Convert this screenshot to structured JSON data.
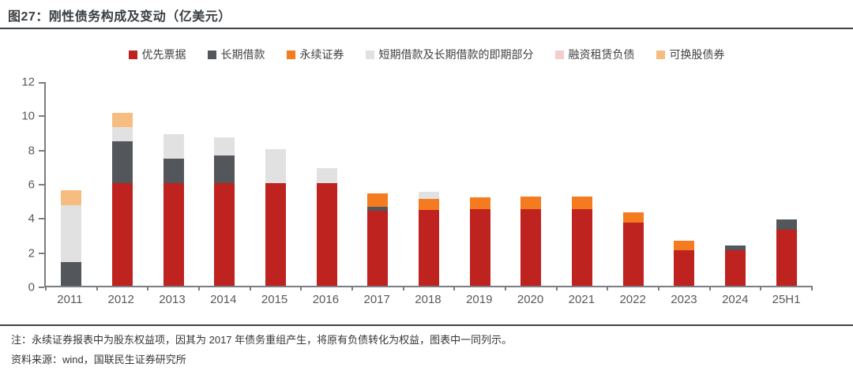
{
  "header": {
    "title": "图27：刚性债务构成及变动（亿美元）"
  },
  "chart_data": {
    "type": "bar",
    "stacked": true,
    "title": "刚性债务构成及变动（亿美元）",
    "categories": [
      "2011",
      "2012",
      "2013",
      "2014",
      "2015",
      "2016",
      "2017",
      "2018",
      "2019",
      "2020",
      "2021",
      "2022",
      "2023",
      "2024",
      "25H1"
    ],
    "series": [
      {
        "name": "优先票据",
        "color": "#be2320",
        "values": [
          0,
          6.0,
          6.0,
          6.0,
          6.0,
          6.0,
          4.4,
          4.45,
          4.5,
          4.5,
          4.5,
          3.7,
          2.1,
          2.1,
          3.3
        ]
      },
      {
        "name": "长期借款",
        "color": "#53565b",
        "values": [
          1.4,
          2.45,
          1.45,
          1.6,
          0,
          0,
          0.2,
          0,
          0,
          0,
          0,
          0,
          0,
          0.25,
          0.6
        ]
      },
      {
        "name": "永续证券",
        "color": "#f47b20",
        "values": [
          0,
          0,
          0,
          0,
          0,
          0,
          0.8,
          0.65,
          0.65,
          0.7,
          0.7,
          0.6,
          0.55,
          0,
          0
        ]
      },
      {
        "name": "短期借款及长期借款的即期部分",
        "color": "#e1e1e2",
        "values": [
          3.3,
          0.85,
          1.4,
          1.1,
          2.0,
          0.9,
          0,
          0.4,
          0,
          0,
          0,
          0,
          0,
          0,
          0
        ]
      },
      {
        "name": "融资租赁负债",
        "color": "#f2cecd",
        "values": [
          0,
          0,
          0,
          0,
          0,
          0,
          0,
          0,
          0,
          0,
          0,
          0,
          0,
          0,
          0
        ]
      },
      {
        "name": "可换股债券",
        "color": "#f7bc80",
        "values": [
          0.9,
          0.8,
          0,
          0,
          0,
          0,
          0,
          0,
          0,
          0,
          0,
          0,
          0,
          0,
          0
        ]
      }
    ],
    "totals": [
      5.6,
      10.1,
      8.85,
      8.7,
      8.0,
      6.9,
      5.4,
      5.5,
      5.15,
      5.2,
      5.2,
      4.3,
      2.65,
      2.35,
      3.9
    ],
    "ylim": [
      0,
      12
    ],
    "yticks": [
      0,
      2,
      4,
      6,
      8,
      10,
      12
    ],
    "grid": false,
    "legend_position": "top"
  },
  "footer": {
    "note": "注：永续证券报表中为股东权益项，因其为 2017 年债务重组产生，将原有负债转化为权益，图表中一同列示。",
    "source": "资料来源：wind，国联民生证券研究所"
  }
}
